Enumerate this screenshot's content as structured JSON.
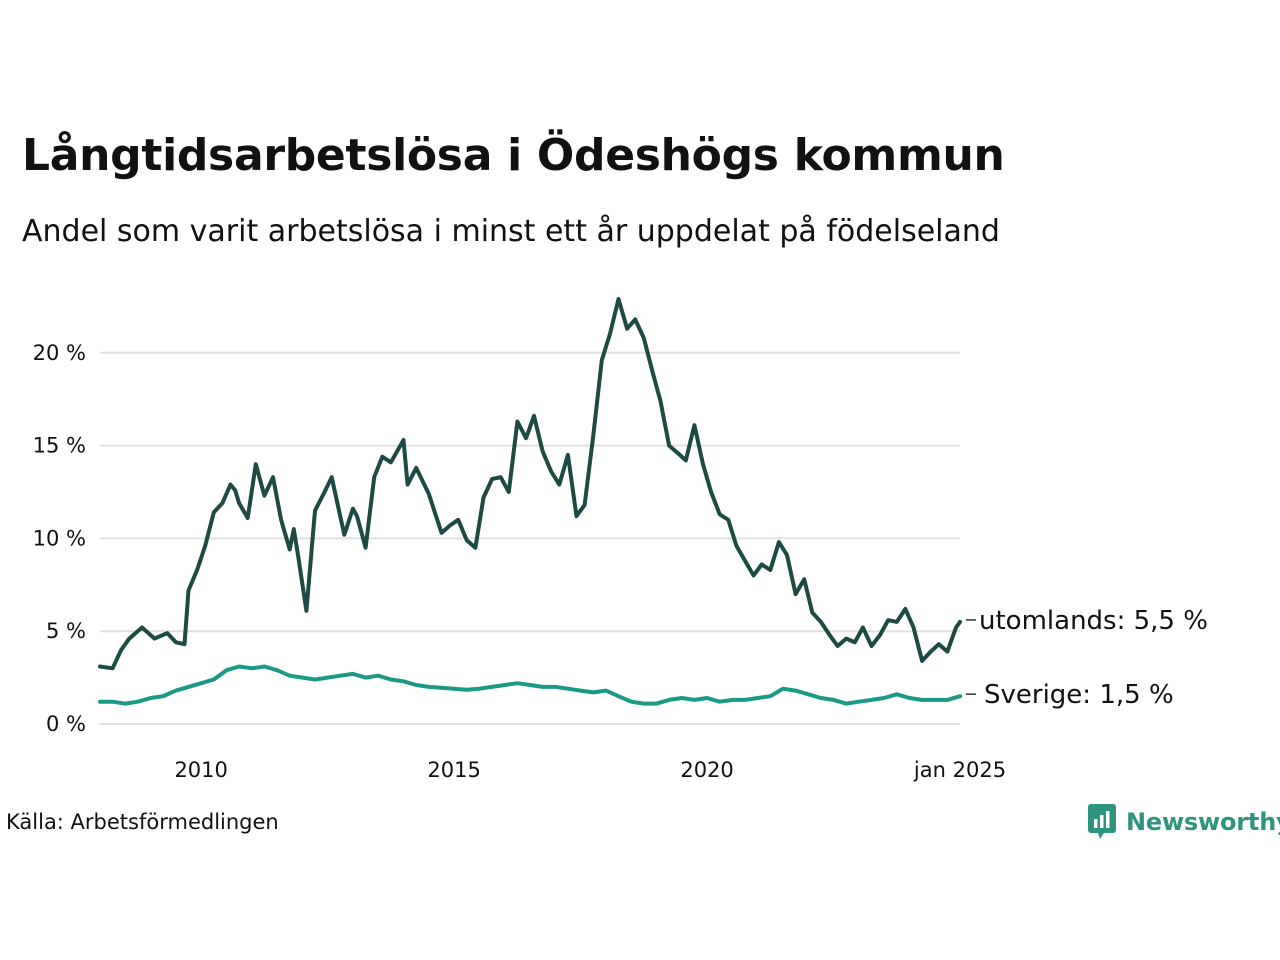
{
  "title": "Långtidsarbetslösa i Ödeshögs kommun",
  "subtitle": "Andel som varit arbetslösa i minst ett år uppdelat på födelseland",
  "source": "Källa: Arbetsförmedlingen",
  "brand": "Newsworthy",
  "colors": {
    "utomlands": "#1e4a44",
    "sverige": "#1a9a86",
    "grid": "#e0e0e0",
    "brand": "#2e9480"
  },
  "chart_data": {
    "type": "line",
    "title": "Långtidsarbetslösa i Ödeshögs kommun",
    "subtitle": "Andel som varit arbetslösa i minst ett år uppdelat på födelseland",
    "ylim": [
      0,
      25
    ],
    "yticks": [
      0,
      5,
      10,
      15,
      20
    ],
    "ytick_labels": [
      "0 %",
      "5 %",
      "10 %",
      "15 %",
      "20 %"
    ],
    "xlim": [
      2008.0,
      2025.0
    ],
    "xticks": [
      2010,
      2015,
      2020,
      2025
    ],
    "xtick_labels": [
      "2010",
      "2015",
      "2020",
      "jan 2025"
    ],
    "grid": true,
    "series": [
      {
        "name": "utomlands",
        "label": "utomlands: 5,5 %",
        "x": [
          2008.0,
          2008.25,
          2008.42,
          2008.58,
          2008.83,
          2009.08,
          2009.33,
          2009.5,
          2009.67,
          2009.75,
          2009.92,
          2010.08,
          2010.25,
          2010.42,
          2010.58,
          2010.67,
          2010.75,
          2010.92,
          2011.08,
          2011.25,
          2011.42,
          2011.58,
          2011.75,
          2011.83,
          2011.92,
          2012.08,
          2012.25,
          2012.42,
          2012.58,
          2012.83,
          2013.0,
          2013.08,
          2013.25,
          2013.42,
          2013.58,
          2013.75,
          2014.0,
          2014.08,
          2014.25,
          2014.5,
          2014.75,
          2014.92,
          2015.08,
          2015.25,
          2015.42,
          2015.58,
          2015.75,
          2015.92,
          2016.08,
          2016.25,
          2016.42,
          2016.58,
          2016.75,
          2016.92,
          2017.08,
          2017.25,
          2017.42,
          2017.58,
          2017.75,
          2017.92,
          2018.08,
          2018.25,
          2018.42,
          2018.58,
          2018.75,
          2018.92,
          2019.08,
          2019.25,
          2019.42,
          2019.58,
          2019.75,
          2019.92,
          2020.08,
          2020.25,
          2020.42,
          2020.58,
          2020.75,
          2020.92,
          2021.08,
          2021.25,
          2021.42,
          2021.58,
          2021.75,
          2021.92,
          2022.08,
          2022.25,
          2022.42,
          2022.58,
          2022.75,
          2022.92,
          2023.08,
          2023.25,
          2023.42,
          2023.58,
          2023.75,
          2023.92,
          2024.08,
          2024.25,
          2024.42,
          2024.58,
          2024.75,
          2024.92,
          2025.0
        ],
        "values": [
          3.1,
          3.0,
          4.0,
          4.6,
          5.2,
          4.6,
          4.9,
          4.4,
          4.3,
          7.2,
          8.3,
          9.6,
          11.4,
          11.9,
          12.9,
          12.6,
          11.9,
          11.1,
          14.0,
          12.3,
          13.3,
          11.0,
          9.4,
          10.5,
          9.0,
          6.1,
          11.5,
          12.4,
          13.3,
          10.2,
          11.6,
          11.2,
          9.5,
          13.3,
          14.4,
          14.1,
          15.3,
          12.9,
          13.8,
          12.4,
          10.3,
          10.7,
          11.0,
          9.9,
          9.5,
          12.2,
          13.2,
          13.3,
          12.5,
          16.3,
          15.4,
          16.6,
          14.7,
          13.6,
          12.9,
          14.5,
          11.2,
          11.8,
          15.5,
          19.6,
          21.0,
          22.9,
          21.3,
          21.8,
          20.8,
          19.0,
          17.4,
          15.0,
          14.6,
          14.2,
          16.1,
          14.0,
          12.5,
          11.3,
          11.0,
          9.6,
          8.8,
          8.0,
          8.6,
          8.3,
          9.8,
          9.1,
          7.0,
          7.8,
          6.0,
          5.5,
          4.8,
          4.2,
          4.6,
          4.4,
          5.2,
          4.2,
          4.8,
          5.6,
          5.5,
          6.2,
          5.2,
          3.4,
          3.9,
          4.3,
          3.9,
          5.2,
          5.5
        ]
      },
      {
        "name": "Sverige",
        "label": "Sverige: 1,5 %",
        "x": [
          2008.0,
          2008.25,
          2008.5,
          2008.75,
          2009.0,
          2009.25,
          2009.5,
          2009.75,
          2010.0,
          2010.25,
          2010.5,
          2010.75,
          2011.0,
          2011.25,
          2011.5,
          2011.75,
          2012.0,
          2012.25,
          2012.5,
          2012.75,
          2013.0,
          2013.25,
          2013.5,
          2013.75,
          2014.0,
          2014.25,
          2014.5,
          2014.75,
          2015.0,
          2015.25,
          2015.5,
          2015.75,
          2016.0,
          2016.25,
          2016.5,
          2016.75,
          2017.0,
          2017.25,
          2017.5,
          2017.75,
          2018.0,
          2018.25,
          2018.5,
          2018.75,
          2019.0,
          2019.25,
          2019.5,
          2019.75,
          2020.0,
          2020.25,
          2020.5,
          2020.75,
          2021.0,
          2021.25,
          2021.5,
          2021.75,
          2022.0,
          2022.25,
          2022.5,
          2022.75,
          2023.0,
          2023.25,
          2023.5,
          2023.75,
          2024.0,
          2024.25,
          2024.5,
          2024.75,
          2025.0
        ],
        "values": [
          1.2,
          1.2,
          1.1,
          1.2,
          1.4,
          1.5,
          1.8,
          2.0,
          2.2,
          2.4,
          2.9,
          3.1,
          3.0,
          3.1,
          2.9,
          2.6,
          2.5,
          2.4,
          2.5,
          2.6,
          2.7,
          2.5,
          2.6,
          2.4,
          2.3,
          2.1,
          2.0,
          1.95,
          1.9,
          1.85,
          1.9,
          2.0,
          2.1,
          2.2,
          2.1,
          2.0,
          2.0,
          1.9,
          1.8,
          1.7,
          1.8,
          1.5,
          1.2,
          1.1,
          1.1,
          1.3,
          1.4,
          1.3,
          1.4,
          1.2,
          1.3,
          1.3,
          1.4,
          1.5,
          1.9,
          1.8,
          1.6,
          1.4,
          1.3,
          1.1,
          1.2,
          1.3,
          1.4,
          1.6,
          1.4,
          1.3,
          1.3,
          1.3,
          1.5
        ]
      }
    ]
  }
}
